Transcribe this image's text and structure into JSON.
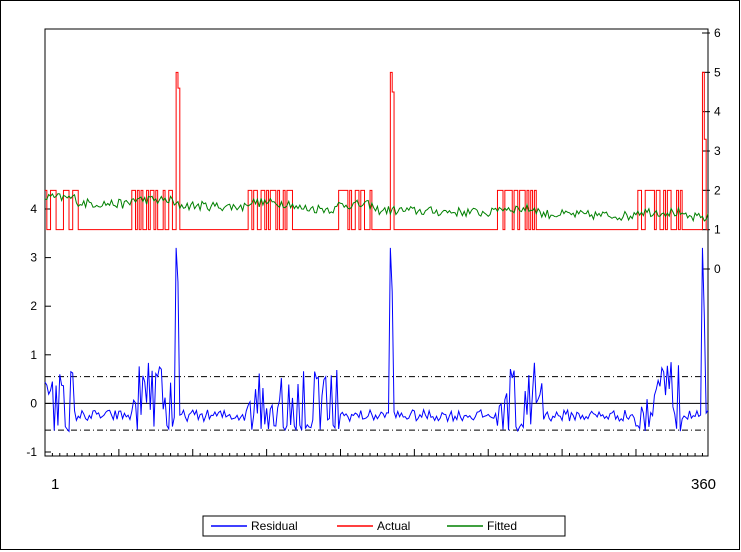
{
  "chart_data": {
    "type": "line",
    "title": "",
    "x_range": [
      1,
      360
    ],
    "x_tick_labels": [
      "1",
      "360"
    ],
    "left_axis": {
      "ticks": [
        -1,
        0,
        1,
        2,
        3,
        4
      ],
      "label": ""
    },
    "right_axis": {
      "ticks": [
        0,
        1,
        2,
        3,
        4,
        5,
        6
      ],
      "label": ""
    },
    "grid": false,
    "reference_lines": {
      "zero": 0,
      "upper_band": 0.55,
      "lower_band": -0.55
    },
    "legend_position": "bottom-center",
    "series": [
      {
        "name": "Residual",
        "axis": "left",
        "color": "#0000ff",
        "segments": [
          {
            "x": [
              1,
              16
            ],
            "y": 0.5,
            "noise": 0.35
          },
          {
            "x": [
              16,
              48
            ],
            "y": -0.25,
            "noise": 0.12
          },
          {
            "x": [
              48,
              70
            ],
            "y": 0.3,
            "noise": 0.55
          },
          {
            "x": [
              70,
              110
            ],
            "y": -0.25,
            "noise": 0.12
          },
          {
            "x": [
              110,
              135
            ],
            "y": 0.3,
            "noise": 0.55
          },
          {
            "x": [
              135,
              160
            ],
            "y": 0.2,
            "noise": 0.55
          },
          {
            "x": [
              160,
              245
            ],
            "y": -0.25,
            "noise": 0.12
          },
          {
            "x": [
              245,
              270
            ],
            "y": 0.3,
            "noise": 0.55
          },
          {
            "x": [
              270,
              320
            ],
            "y": -0.25,
            "noise": 0.12
          },
          {
            "x": [
              320,
              345
            ],
            "y": 0.3,
            "noise": 0.55
          },
          {
            "x": [
              345,
              360
            ],
            "y": -0.25,
            "noise": 0.12
          }
        ],
        "spikes": [
          [
            72,
            3.2
          ],
          [
            73,
            2.5
          ],
          [
            188,
            3.2
          ],
          [
            189,
            2.3
          ],
          [
            357,
            3.2
          ],
          [
            358,
            1.8
          ]
        ]
      },
      {
        "name": "Actual",
        "axis": "right",
        "color": "#ff0000",
        "low": 1,
        "high": 2,
        "high_runs": [
          [
            1,
            18
          ],
          [
            48,
            70
          ],
          [
            110,
            135
          ],
          [
            160,
            178
          ],
          [
            245,
            268
          ],
          [
            320,
            345
          ]
        ],
        "spikes": [
          [
            72,
            5
          ],
          [
            73,
            4.6
          ],
          [
            188,
            5
          ],
          [
            189,
            4.5
          ],
          [
            357,
            5
          ],
          [
            358,
            3.3
          ]
        ]
      },
      {
        "name": "Fitted",
        "axis": "right",
        "color": "#008000",
        "start": 1.7,
        "end": 1.3,
        "noise": 0.2
      }
    ]
  },
  "legend": {
    "residual": "Residual",
    "actual": "Actual",
    "fitted": "Fitted"
  }
}
